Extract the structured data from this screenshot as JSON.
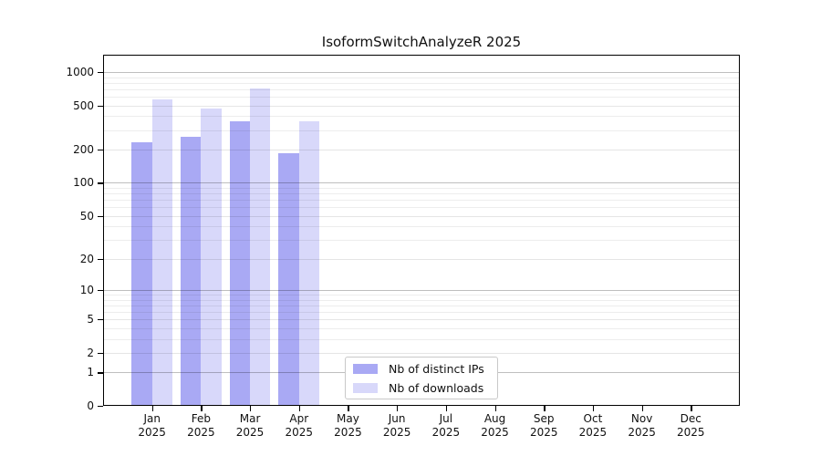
{
  "figure": {
    "title": "IsoformSwitchAnalyzeR 2025"
  },
  "chart_data": {
    "type": "bar",
    "title": "IsoformSwitchAnalyzeR 2025",
    "y_scale": "log1p",
    "ylim": [
      0,
      1430
    ],
    "grid": true,
    "legend_position": "bottom-center-inside",
    "year_label": "2025",
    "months": [
      "Jan",
      "Feb",
      "Mar",
      "Apr",
      "May",
      "Jun",
      "Jul",
      "Aug",
      "Sep",
      "Oct",
      "Nov",
      "Dec"
    ],
    "y_ticks": [
      0,
      1,
      2,
      5,
      10,
      20,
      50,
      100,
      200,
      500,
      1000
    ],
    "y_minor_gridlines": [
      3,
      4,
      6,
      7,
      8,
      9,
      30,
      40,
      60,
      70,
      80,
      90,
      300,
      400,
      600,
      700,
      800,
      900
    ],
    "series": [
      {
        "name": "Nb of distinct IPs",
        "color": "#a9a9f4",
        "values": [
          233,
          262,
          360,
          187,
          0,
          0,
          0,
          0,
          0,
          0,
          0,
          0
        ]
      },
      {
        "name": "Nb of downloads",
        "color": "#d8d8fa",
        "values": [
          565,
          467,
          710,
          360,
          0,
          0,
          0,
          0,
          0,
          0,
          0,
          0
        ]
      }
    ]
  }
}
